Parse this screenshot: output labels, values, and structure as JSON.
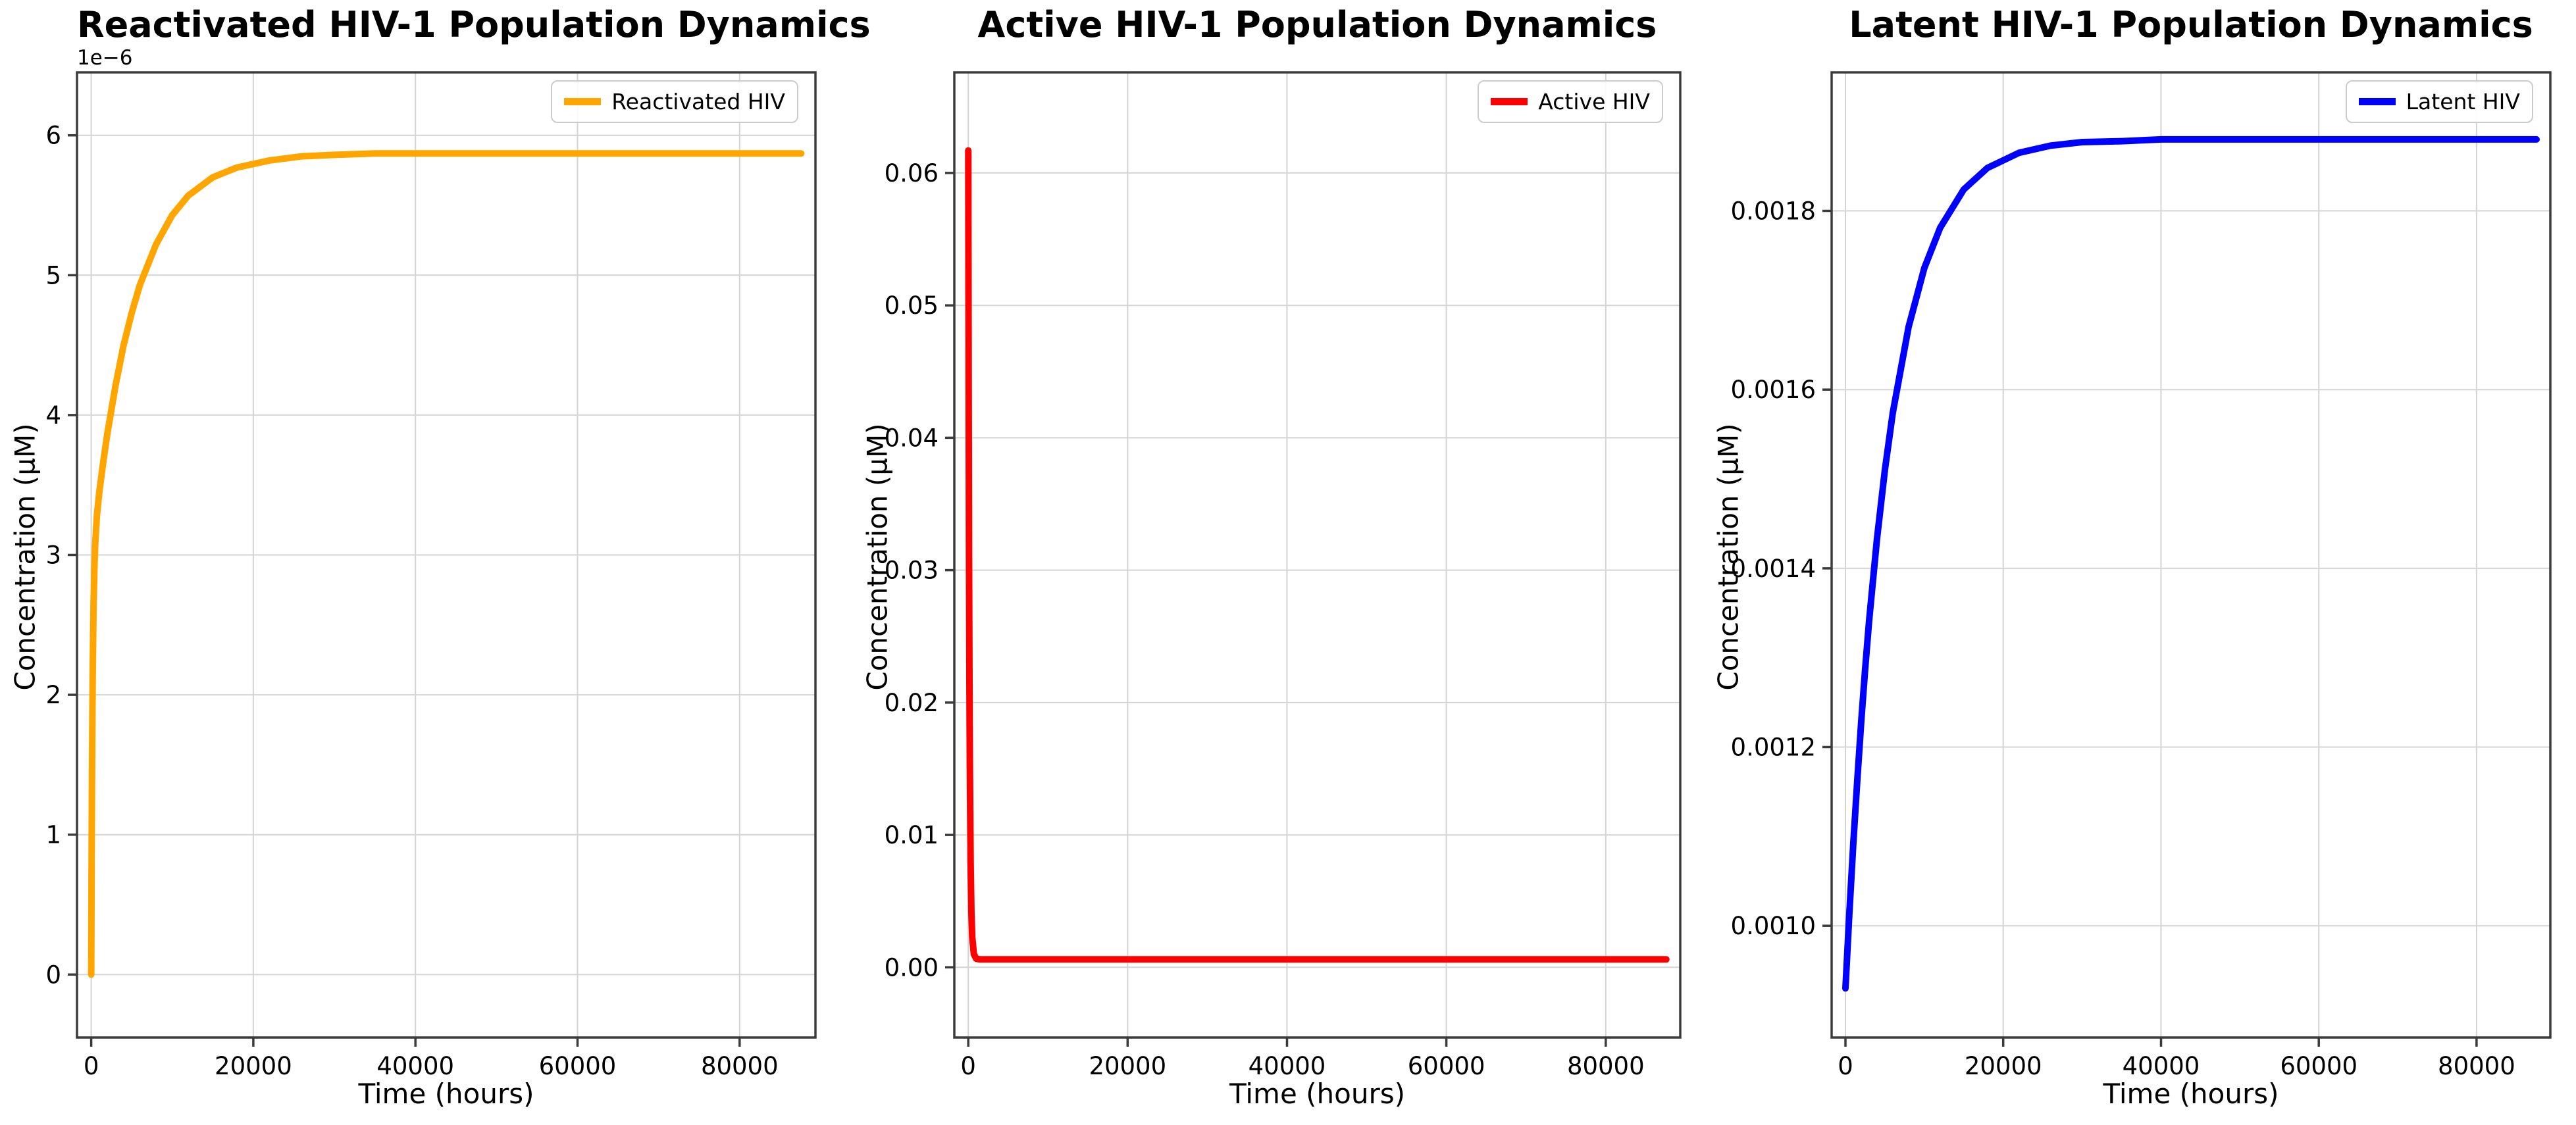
{
  "figure": {
    "background": "#ffffff"
  },
  "chart_data": [
    {
      "id": "reactivated-hiv",
      "type": "line",
      "title": "Reactivated HIV-1 Population Dynamics",
      "xlabel": "Time (hours)",
      "ylabel": "Concentration (μM)",
      "y_offset_label": "1e−6",
      "legend_label": "Reactivated HIV",
      "legend_position": "upper right",
      "grid": true,
      "xlim": [
        -1750,
        89350
      ],
      "ylim": [
        -4.5e-07,
        6.45e-06
      ],
      "x_tick_values": [
        0,
        20000,
        40000,
        60000,
        80000
      ],
      "x_tick_labels": [
        "0",
        "20000",
        "40000",
        "60000",
        "80000"
      ],
      "y_tick_values": [
        0,
        1e-06,
        2e-06,
        3e-06,
        4e-06,
        5e-06,
        6e-06
      ],
      "y_tick_labels": [
        "0",
        "1",
        "2",
        "3",
        "4",
        "5",
        "6"
      ],
      "series": [
        {
          "name": "Reactivated HIV",
          "color": "#FFA500",
          "points": [
            [
              0,
              0
            ],
            [
              50,
              8.2e-07
            ],
            [
              100,
              1.43e-06
            ],
            [
              150,
              1.88e-06
            ],
            [
              200,
              2.21e-06
            ],
            [
              300,
              2.66e-06
            ],
            [
              400,
              2.92e-06
            ],
            [
              500,
              3.08e-06
            ],
            [
              700,
              3.28e-06
            ],
            [
              1000,
              3.45e-06
            ],
            [
              1500,
              3.67e-06
            ],
            [
              2000,
              3.87e-06
            ],
            [
              3000,
              4.21e-06
            ],
            [
              4000,
              4.5e-06
            ],
            [
              5000,
              4.73e-06
            ],
            [
              6000,
              4.93e-06
            ],
            [
              8000,
              5.22e-06
            ],
            [
              10000,
              5.43e-06
            ],
            [
              12000,
              5.57e-06
            ],
            [
              15000,
              5.7e-06
            ],
            [
              18000,
              5.77e-06
            ],
            [
              22000,
              5.82e-06
            ],
            [
              26000,
              5.85e-06
            ],
            [
              30000,
              5.86e-06
            ],
            [
              35000,
              5.87e-06
            ],
            [
              40000,
              5.87e-06
            ],
            [
              50000,
              5.87e-06
            ],
            [
              60000,
              5.87e-06
            ],
            [
              70000,
              5.87e-06
            ],
            [
              80000,
              5.87e-06
            ],
            [
              87600,
              5.87e-06
            ]
          ]
        }
      ]
    },
    {
      "id": "active-hiv",
      "type": "line",
      "title": "Active HIV-1 Population Dynamics",
      "xlabel": "Time (hours)",
      "ylabel": "Concentration (μM)",
      "legend_label": "Active HIV",
      "legend_position": "upper right",
      "grid": true,
      "xlim": [
        -1750,
        89350
      ],
      "ylim": [
        -0.0053,
        0.0676
      ],
      "x_tick_values": [
        0,
        20000,
        40000,
        60000,
        80000
      ],
      "x_tick_labels": [
        "0",
        "20000",
        "40000",
        "60000",
        "80000"
      ],
      "y_tick_values": [
        0,
        0.01,
        0.02,
        0.03,
        0.04,
        0.05,
        0.06
      ],
      "y_tick_labels": [
        "0.00",
        "0.01",
        "0.02",
        "0.03",
        "0.04",
        "0.05",
        "0.06"
      ],
      "series": [
        {
          "name": "Active HIV",
          "color": "#FF0000",
          "points": [
            [
              0,
              0.0617
            ],
            [
              50,
              0.0434
            ],
            [
              100,
              0.0305
            ],
            [
              150,
              0.0215
            ],
            [
              200,
              0.0152
            ],
            [
              300,
              0.0078
            ],
            [
              400,
              0.0041
            ],
            [
              500,
              0.0023
            ],
            [
              700,
              0.001
            ],
            [
              1000,
              0.00065
            ],
            [
              1500,
              0.0006
            ],
            [
              2000,
              0.0006
            ],
            [
              5000,
              0.0006
            ],
            [
              10000,
              0.0006
            ],
            [
              20000,
              0.0006
            ],
            [
              30000,
              0.0006
            ],
            [
              40000,
              0.0006
            ],
            [
              50000,
              0.0006
            ],
            [
              60000,
              0.0006
            ],
            [
              70000,
              0.0006
            ],
            [
              80000,
              0.0006
            ],
            [
              87600,
              0.0006
            ]
          ]
        }
      ]
    },
    {
      "id": "latent-hiv",
      "type": "line",
      "title": "Latent HIV-1 Population Dynamics",
      "xlabel": "Time (hours)",
      "ylabel": "Concentration (μM)",
      "legend_label": "Latent HIV",
      "legend_position": "upper right",
      "grid": true,
      "xlim": [
        -1750,
        89350
      ],
      "ylim": [
        0.000875,
        0.001955
      ],
      "x_tick_values": [
        0,
        20000,
        40000,
        60000,
        80000
      ],
      "x_tick_labels": [
        "0",
        "20000",
        "40000",
        "60000",
        "80000"
      ],
      "y_tick_values": [
        0.001,
        0.0012,
        0.0014,
        0.0016,
        0.0018
      ],
      "y_tick_labels": [
        "0.0010",
        "0.0012",
        "0.0014",
        "0.0016",
        "0.0018"
      ],
      "series": [
        {
          "name": "Latent HIV",
          "color": "#0000FF",
          "points": [
            [
              0,
              0.00093
            ],
            [
              500,
              0.001015
            ],
            [
              1000,
              0.001093
            ],
            [
              1500,
              0.001163
            ],
            [
              2000,
              0.001229
            ],
            [
              2500,
              0.001287
            ],
            [
              3000,
              0.001341
            ],
            [
              4000,
              0.001433
            ],
            [
              5000,
              0.00151
            ],
            [
              6000,
              0.001574
            ],
            [
              8000,
              0.00167
            ],
            [
              10000,
              0.001736
            ],
            [
              12000,
              0.001781
            ],
            [
              15000,
              0.001824
            ],
            [
              18000,
              0.001848
            ],
            [
              22000,
              0.001865
            ],
            [
              26000,
              0.001873
            ],
            [
              30000,
              0.001877
            ],
            [
              35000,
              0.001878
            ],
            [
              40000,
              0.00188
            ],
            [
              50000,
              0.00188
            ],
            [
              60000,
              0.00188
            ],
            [
              70000,
              0.00188
            ],
            [
              80000,
              0.00188
            ],
            [
              87600,
              0.00188
            ]
          ]
        }
      ]
    }
  ]
}
